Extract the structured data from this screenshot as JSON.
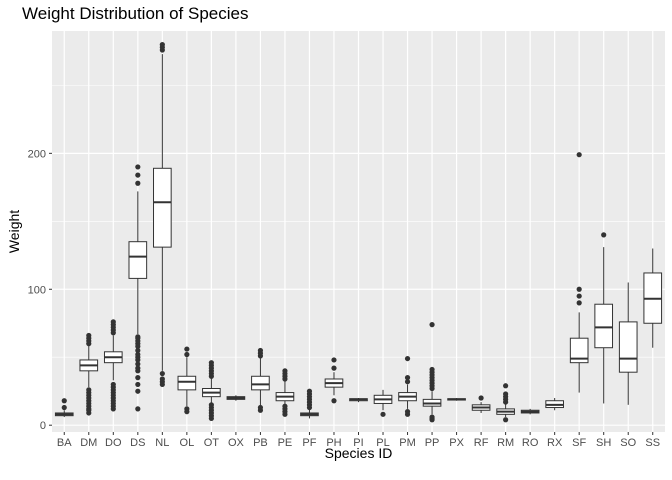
{
  "chart_data": {
    "type": "boxplot",
    "title": "Weight Distribution of Species",
    "xlabel": "Species ID",
    "ylabel": "Weight",
    "ylim": [
      -5,
      290
    ],
    "yticks": [
      0,
      100,
      200
    ],
    "grid": true,
    "colors": {
      "panel": "#ebebeb",
      "grid_major": "#ffffff",
      "box_fill": "#ffffff",
      "box_line": "#333333",
      "outlier": "#333333"
    },
    "categories": [
      "BA",
      "DM",
      "DO",
      "DS",
      "NL",
      "OL",
      "OT",
      "OX",
      "PB",
      "PE",
      "PF",
      "PH",
      "PI",
      "PL",
      "PM",
      "PP",
      "PX",
      "RF",
      "RM",
      "RO",
      "RX",
      "SF",
      "SH",
      "SO",
      "SS"
    ],
    "boxes": [
      {
        "id": "BA",
        "whisker_low": 6,
        "q1": 7,
        "median": 8,
        "q3": 9,
        "whisker_high": 11,
        "outliers": [
          13,
          18
        ]
      },
      {
        "id": "DM",
        "whisker_low": 28,
        "q1": 40,
        "median": 44,
        "q3": 48,
        "whisker_high": 59,
        "outliers": [
          9,
          11,
          12,
          14,
          16,
          18,
          20,
          22,
          24,
          26,
          60,
          62,
          64,
          66
        ]
      },
      {
        "id": "DO",
        "whisker_low": 33,
        "q1": 46,
        "median": 50,
        "q3": 54,
        "whisker_high": 66,
        "outliers": [
          12,
          14,
          16,
          18,
          20,
          22,
          24,
          26,
          28,
          30,
          68,
          70,
          72,
          74,
          76
        ]
      },
      {
        "id": "DS",
        "whisker_low": 67,
        "q1": 108,
        "median": 124,
        "q3": 135,
        "whisker_high": 172,
        "outliers": [
          12,
          25,
          30,
          35,
          40,
          42,
          45,
          48,
          50,
          52,
          55,
          58,
          60,
          62,
          64,
          65,
          178,
          184,
          190
        ]
      },
      {
        "id": "NL",
        "whisker_low": 40,
        "q1": 131,
        "median": 164,
        "q3": 189,
        "whisker_high": 273,
        "outliers": [
          30,
          32,
          34,
          38,
          276,
          278,
          280
        ]
      },
      {
        "id": "OL",
        "whisker_low": 14,
        "q1": 26,
        "median": 32,
        "q3": 36,
        "whisker_high": 50,
        "outliers": [
          10,
          12,
          52,
          56
        ]
      },
      {
        "id": "OT",
        "whisker_low": 16,
        "q1": 21,
        "median": 24,
        "q3": 27,
        "whisker_high": 35,
        "outliers": [
          5,
          7,
          9,
          11,
          13,
          15,
          36,
          38,
          40,
          42,
          44,
          46
        ]
      },
      {
        "id": "OX",
        "whisker_low": 18,
        "q1": 19,
        "median": 20,
        "q3": 21,
        "whisker_high": 22,
        "outliers": []
      },
      {
        "id": "PB",
        "whisker_low": 14,
        "q1": 26,
        "median": 30,
        "q3": 36,
        "whisker_high": 50,
        "outliers": [
          11,
          13,
          51,
          53,
          55
        ]
      },
      {
        "id": "PE",
        "whisker_low": 15,
        "q1": 18,
        "median": 21,
        "q3": 24,
        "whisker_high": 33,
        "outliers": [
          8,
          10,
          12,
          14,
          34,
          36,
          38,
          40
        ]
      },
      {
        "id": "PF",
        "whisker_low": 5,
        "q1": 7,
        "median": 8,
        "q3": 9,
        "whisker_high": 12,
        "outliers": [
          13,
          15,
          17,
          19,
          21,
          23,
          25
        ]
      },
      {
        "id": "PH",
        "whisker_low": 22,
        "q1": 28,
        "median": 31,
        "q3": 34,
        "whisker_high": 39,
        "outliers": [
          18,
          42,
          48
        ]
      },
      {
        "id": "PI",
        "whisker_low": 17,
        "q1": 18,
        "median": 19,
        "q3": 19.5,
        "whisker_high": 20,
        "outliers": []
      },
      {
        "id": "PL",
        "whisker_low": 11,
        "q1": 16,
        "median": 19,
        "q3": 22,
        "whisker_high": 26,
        "outliers": [
          8
        ]
      },
      {
        "id": "PM",
        "whisker_low": 12,
        "q1": 18,
        "median": 21,
        "q3": 24,
        "whisker_high": 30,
        "outliers": [
          8,
          10,
          32,
          35,
          49
        ]
      },
      {
        "id": "PP",
        "whisker_low": 8,
        "q1": 14,
        "median": 16,
        "q3": 19,
        "whisker_high": 25,
        "outliers": [
          4,
          5,
          6,
          27,
          29,
          31,
          33,
          35,
          37,
          39,
          41,
          74
        ]
      },
      {
        "id": "PX",
        "whisker_low": 18,
        "q1": 18.5,
        "median": 19,
        "q3": 19.5,
        "whisker_high": 20,
        "outliers": []
      },
      {
        "id": "RF",
        "whisker_low": 9,
        "q1": 11,
        "median": 13,
        "q3": 15,
        "whisker_high": 17,
        "outliers": [
          20
        ]
      },
      {
        "id": "RM",
        "whisker_low": 6,
        "q1": 8,
        "median": 10,
        "q3": 12,
        "whisker_high": 16,
        "outliers": [
          4,
          17,
          19,
          21,
          23,
          29
        ]
      },
      {
        "id": "RO",
        "whisker_low": 8,
        "q1": 9,
        "median": 10,
        "q3": 11,
        "whisker_high": 12,
        "outliers": []
      },
      {
        "id": "RX",
        "whisker_low": 11,
        "q1": 13,
        "median": 15,
        "q3": 18,
        "whisker_high": 20,
        "outliers": []
      },
      {
        "id": "SF",
        "whisker_low": 24,
        "q1": 46,
        "median": 49,
        "q3": 64,
        "whisker_high": 83,
        "outliers": [
          90,
          95,
          100,
          199
        ]
      },
      {
        "id": "SH",
        "whisker_low": 16,
        "q1": 57,
        "median": 72,
        "q3": 89,
        "whisker_high": 131,
        "outliers": [
          140
        ]
      },
      {
        "id": "SO",
        "whisker_low": 15,
        "q1": 39,
        "median": 49,
        "q3": 76,
        "whisker_high": 105,
        "outliers": []
      },
      {
        "id": "SS",
        "whisker_low": 57,
        "q1": 75,
        "median": 93,
        "q3": 112,
        "whisker_high": 130,
        "outliers": []
      }
    ]
  }
}
